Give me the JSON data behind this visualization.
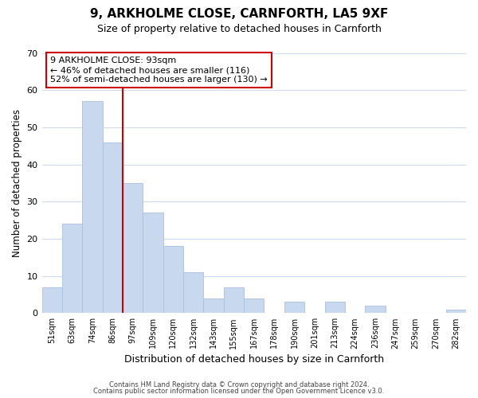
{
  "title": "9, ARKHOLME CLOSE, CARNFORTH, LA5 9XF",
  "subtitle": "Size of property relative to detached houses in Carnforth",
  "xlabel": "Distribution of detached houses by size in Carnforth",
  "ylabel": "Number of detached properties",
  "bar_labels": [
    "51sqm",
    "63sqm",
    "74sqm",
    "86sqm",
    "97sqm",
    "109sqm",
    "120sqm",
    "132sqm",
    "143sqm",
    "155sqm",
    "167sqm",
    "178sqm",
    "190sqm",
    "201sqm",
    "213sqm",
    "224sqm",
    "236sqm",
    "247sqm",
    "259sqm",
    "270sqm",
    "282sqm"
  ],
  "bar_values": [
    7,
    24,
    57,
    46,
    35,
    27,
    18,
    11,
    4,
    7,
    4,
    0,
    3,
    0,
    3,
    0,
    2,
    0,
    0,
    0,
    1
  ],
  "bar_color": "#c8d8ee",
  "bar_edge_color": "#a8c0de",
  "vline_bar_index": 3,
  "vline_color": "#cc0000",
  "ylim": [
    0,
    70
  ],
  "yticks": [
    0,
    10,
    20,
    30,
    40,
    50,
    60,
    70
  ],
  "annotation_title": "9 ARKHOLME CLOSE: 93sqm",
  "annotation_line1": "← 46% of detached houses are smaller (116)",
  "annotation_line2": "52% of semi-detached houses are larger (130) →",
  "annotation_box_facecolor": "#ffffff",
  "annotation_box_edgecolor": "#cc0000",
  "footer1": "Contains HM Land Registry data © Crown copyright and database right 2024.",
  "footer2": "Contains public sector information licensed under the Open Government Licence v3.0.",
  "background_color": "#ffffff",
  "grid_color": "#ccdcee",
  "title_fontsize": 11,
  "subtitle_fontsize": 9
}
